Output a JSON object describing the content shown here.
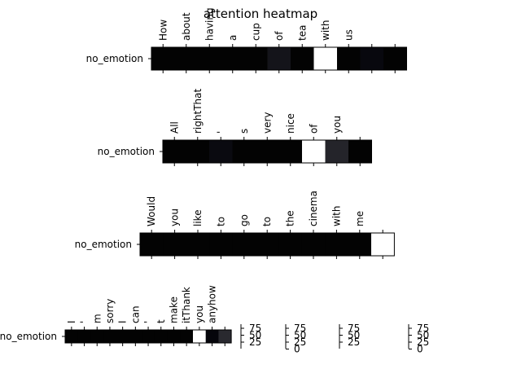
{
  "chart_data": {
    "type": "heatmap",
    "title": "attention heatmap",
    "colormap": "grayscale (dark = low, white = high)",
    "panels": [
      {
        "row_label": "no_emotion",
        "tokens": [
          "How",
          "about",
          "having",
          "a",
          "cup",
          "of",
          "tea",
          "with",
          "us",
          "",
          ""
        ],
        "values": [
          1,
          1,
          1,
          1,
          1,
          8,
          1,
          100,
          1,
          3,
          1
        ]
      },
      {
        "row_label": "no_emotion",
        "tokens": [
          "All",
          "rightThat",
          "'",
          "s",
          "very",
          "nice",
          "of",
          "you",
          ""
        ],
        "values": [
          1,
          1,
          4,
          1,
          1,
          1,
          100,
          14,
          1
        ]
      },
      {
        "row_label": "no_emotion",
        "tokens": [
          "Would",
          "you",
          "like",
          "to",
          "go",
          "to",
          "the",
          "cinema",
          "with",
          "me",
          ""
        ],
        "values": [
          1,
          1,
          1,
          1,
          1,
          1,
          1,
          1,
          1,
          1,
          100
        ]
      },
      {
        "row_label": "no_emotion",
        "tokens": [
          "I",
          "'",
          "m",
          "sorry",
          "I",
          "can",
          "'",
          "t",
          "make",
          "itThank",
          "you",
          "anyhow",
          ""
        ],
        "values": [
          1,
          1,
          1,
          1,
          1,
          1,
          1,
          1,
          1,
          1,
          100,
          2,
          16
        ]
      }
    ],
    "colorbars": [
      {
        "ticks": [
          "75",
          "50",
          "25"
        ]
      },
      {
        "ticks": [
          "75",
          "50",
          "25",
          "0"
        ]
      },
      {
        "ticks": [
          "75",
          "50",
          "25"
        ]
      },
      {
        "ticks": [
          "75",
          "50",
          "25",
          "0"
        ]
      }
    ]
  }
}
